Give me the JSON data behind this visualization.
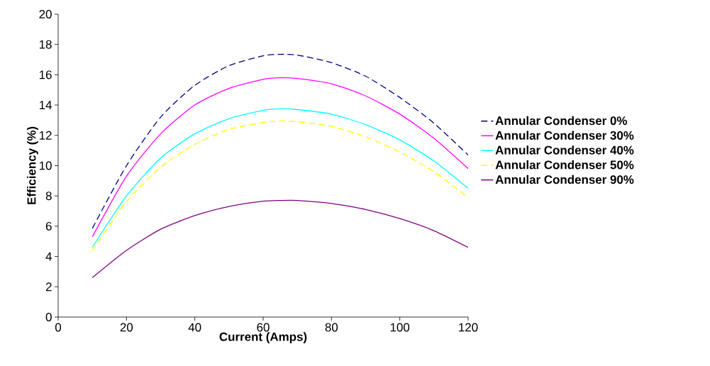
{
  "chart_data": {
    "type": "line",
    "xlabel": "Current (Amps)",
    "ylabel": "Efficiency (%)",
    "x": [
      10,
      20,
      30,
      40,
      50,
      60,
      65,
      70,
      80,
      90,
      100,
      110,
      120
    ],
    "series": [
      {
        "name": "Annular Condenser 0%",
        "color": "#000080",
        "line_style": "dashed",
        "values": [
          5.85,
          10.0,
          13.2,
          15.3,
          16.6,
          17.25,
          17.35,
          17.3,
          16.8,
          15.9,
          14.5,
          12.8,
          10.7
        ]
      },
      {
        "name": "Annular Condenser 30%",
        "color": "#ff00ff",
        "line_style": "solid",
        "values": [
          5.3,
          9.3,
          12.1,
          14.0,
          15.1,
          15.7,
          15.8,
          15.75,
          15.4,
          14.6,
          13.4,
          11.8,
          9.8
        ]
      },
      {
        "name": "Annular Condenser 40%",
        "color": "#00ffff",
        "line_style": "solid",
        "values": [
          4.6,
          8.0,
          10.5,
          12.1,
          13.1,
          13.65,
          13.75,
          13.7,
          13.4,
          12.7,
          11.7,
          10.3,
          8.5
        ]
      },
      {
        "name": "Annular Condenser 50%",
        "color": "#ffff00",
        "line_style": "dashed",
        "values": [
          4.4,
          7.6,
          9.9,
          11.4,
          12.4,
          12.85,
          12.95,
          12.9,
          12.6,
          11.9,
          10.9,
          9.6,
          7.9
        ]
      },
      {
        "name": "Annular Condenser 90%",
        "color": "#800080",
        "line_style": "solid",
        "values": [
          2.6,
          4.4,
          5.8,
          6.7,
          7.3,
          7.65,
          7.7,
          7.7,
          7.5,
          7.1,
          6.5,
          5.7,
          4.6
        ]
      }
    ],
    "xlim": [
      0,
      120
    ],
    "xticks": [
      0,
      20,
      40,
      60,
      80,
      100,
      120
    ],
    "ylim": [
      0,
      20
    ],
    "yticks": [
      0,
      2,
      4,
      6,
      8,
      10,
      12,
      14,
      16,
      18,
      20
    ],
    "grid": false,
    "legend": "right",
    "marker": "none"
  }
}
